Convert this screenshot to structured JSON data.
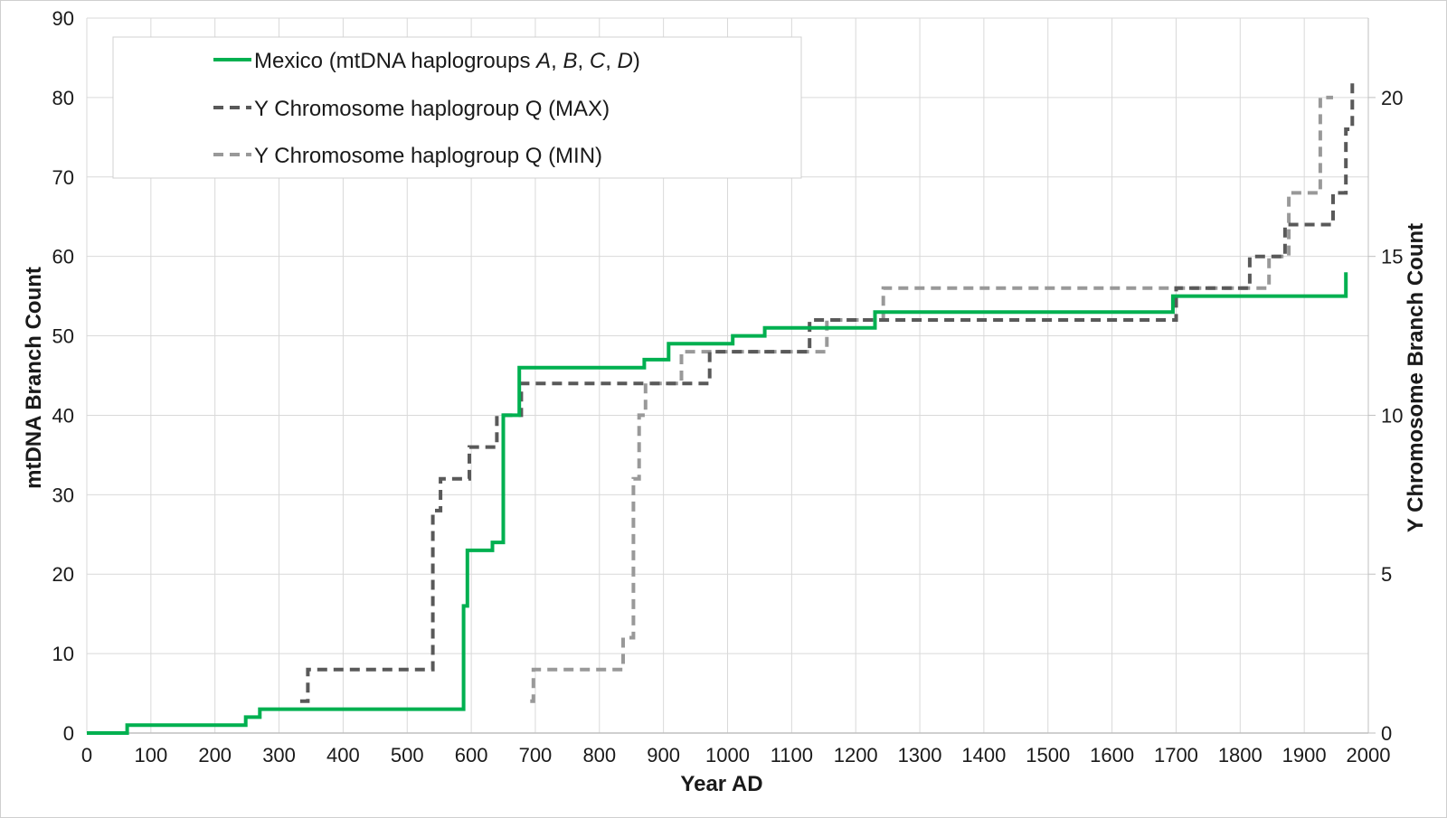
{
  "chart_data": {
    "type": "line",
    "xlabel": "Year AD",
    "ylabel": "mtDNA Branch Count",
    "y2label": "Y Chromosome  Branch Count",
    "xlim": [
      0,
      2000
    ],
    "ylim": [
      0,
      90
    ],
    "y2lim": [
      0,
      22.5
    ],
    "xticks": [
      "0",
      "100",
      "200",
      "300",
      "400",
      "500",
      "600",
      "700",
      "800",
      "900",
      "1000",
      "1100",
      "1200",
      "1300",
      "1400",
      "1500",
      "1600",
      "1700",
      "1800",
      "1900",
      "2000"
    ],
    "yticks": [
      "0",
      "10",
      "20",
      "30",
      "40",
      "50",
      "60",
      "70",
      "80",
      "90"
    ],
    "y2ticks": [
      "0",
      "5",
      "10",
      "15",
      "20"
    ],
    "grid": true,
    "legend_position": "top-left",
    "series": [
      {
        "name": "Mexico (mtDNA haplogroups ",
        "name_parts": [
          "A",
          "B",
          "C",
          "D"
        ],
        "axis": "left",
        "style": "solid",
        "color": "#00b050",
        "x": [
          0,
          63,
          63,
          248,
          248,
          270,
          270,
          588,
          588,
          594,
          594,
          633,
          633,
          650,
          650,
          675,
          675,
          870,
          870,
          908,
          908,
          1008,
          1008,
          1058,
          1058,
          1230,
          1230,
          1695,
          1695,
          1965,
          1965
        ],
        "y": [
          0,
          0,
          1,
          1,
          2,
          2,
          3,
          3,
          16,
          16,
          23,
          23,
          24,
          24,
          40,
          40,
          46,
          46,
          47,
          47,
          49,
          49,
          50,
          50,
          51,
          51,
          53,
          53,
          55,
          55,
          58
        ]
      },
      {
        "name": "Y Chromosome haplogroup Q (MAX)",
        "axis": "right",
        "style": "dashed",
        "color": "#595959",
        "x": [
          333,
          345,
          345,
          540,
          540,
          552,
          552,
          597,
          597,
          640,
          640,
          678,
          678,
          972,
          972,
          1128,
          1128,
          1700,
          1700,
          1815,
          1815,
          1870,
          1870,
          1945,
          1945,
          1965,
          1965,
          1975,
          1975,
          1982
        ],
        "y": [
          1,
          1,
          2,
          2,
          7,
          7,
          8,
          8,
          9,
          9,
          10,
          10,
          11,
          11,
          12,
          12,
          13,
          13,
          14,
          14,
          15,
          15,
          16,
          16,
          17,
          17,
          19,
          19,
          20.5,
          20.5
        ]
      },
      {
        "name": "Y Chromosome haplogroup Q (MIN)",
        "axis": "right",
        "style": "dashed",
        "color": "#999999",
        "x": [
          692,
          697,
          697,
          837,
          837,
          853,
          853,
          862,
          862,
          872,
          872,
          928,
          928,
          1155,
          1155,
          1243,
          1243,
          1845,
          1845,
          1876,
          1876,
          1925,
          1925,
          1938,
          1938,
          1945
        ],
        "y": [
          1,
          1,
          2,
          2,
          3,
          3,
          8,
          8,
          10,
          10,
          11,
          11,
          12,
          12,
          13,
          13,
          14,
          14,
          15,
          15,
          17,
          17,
          20,
          20,
          20,
          20
        ]
      }
    ]
  }
}
